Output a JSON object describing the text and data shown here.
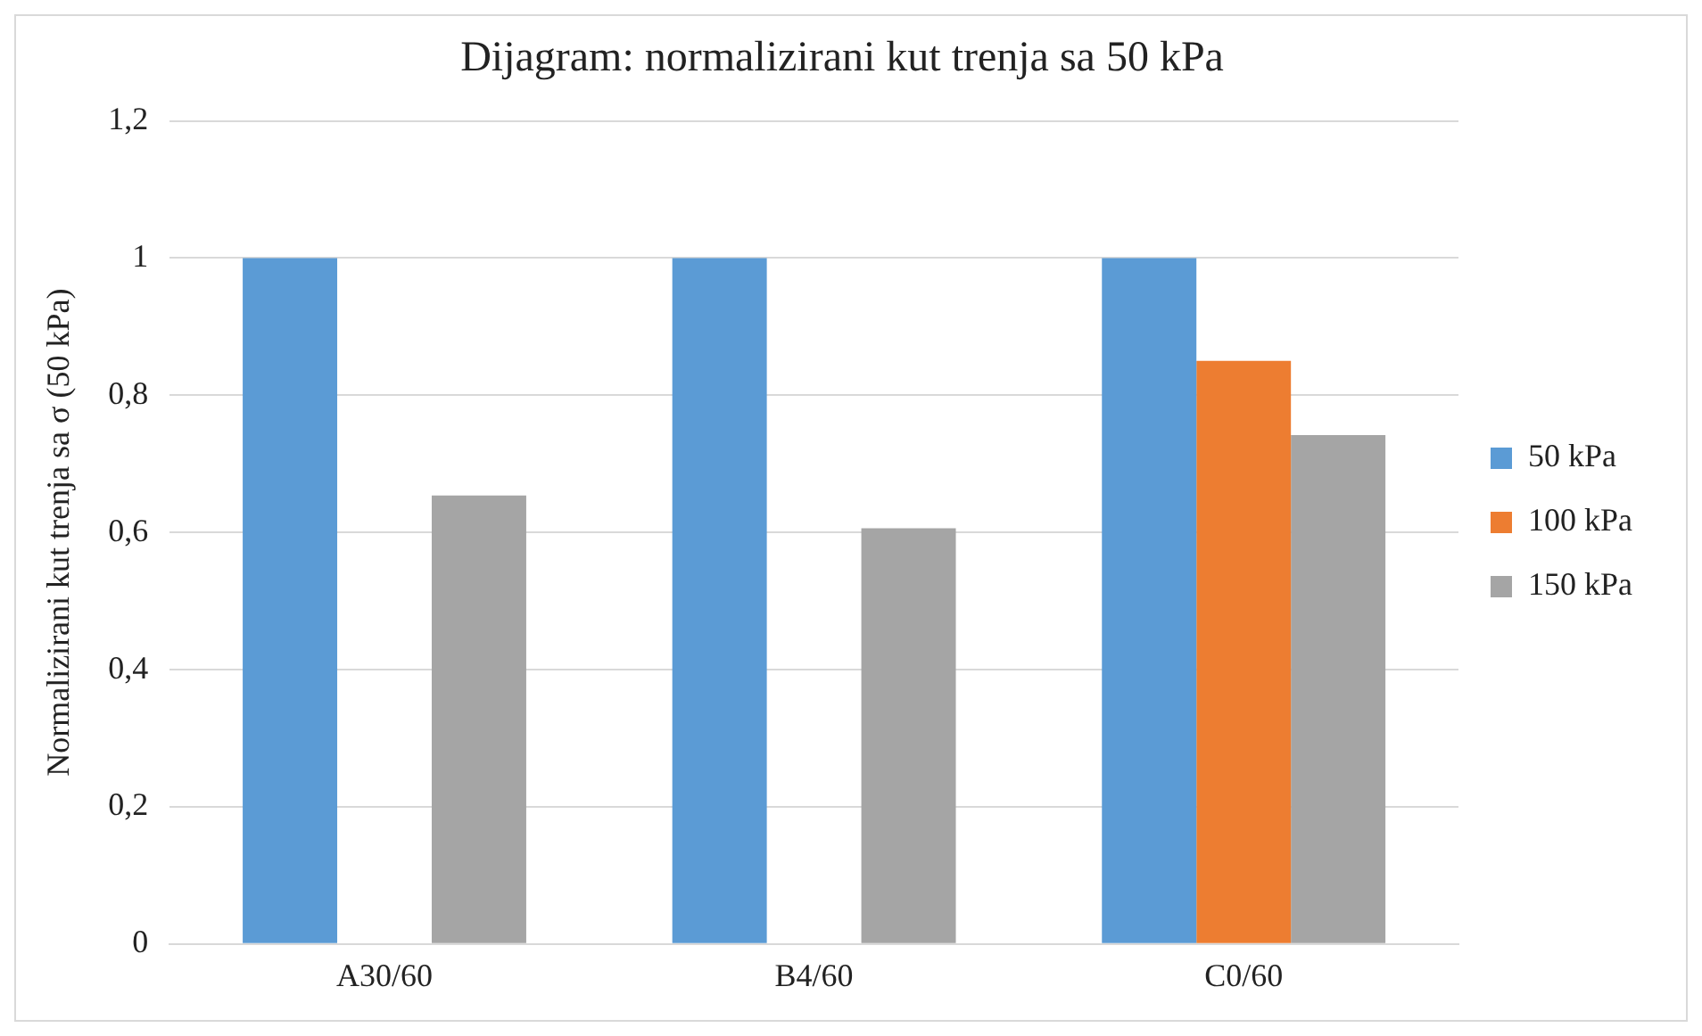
{
  "chart_data": {
    "type": "bar",
    "title": "Dijagram: normalizirani kut trenja sa 50 kPa",
    "ylabel": "Normalizirani kut trenja sa σ (50 kPa)",
    "categories": [
      "A30/60",
      "B4/60",
      "C0/60"
    ],
    "series": [
      {
        "name": "50 kPa",
        "color": "#5b9bd5",
        "values": [
          1,
          1,
          1
        ]
      },
      {
        "name": "100 kPa",
        "color": "#ed7d31",
        "values": [
          null,
          null,
          0.85
        ]
      },
      {
        "name": "150 kPa",
        "color": "#a5a5a5",
        "values": [
          0.654,
          0.606,
          0.742
        ]
      }
    ],
    "ylim": [
      0,
      1.2
    ],
    "yticks": [
      0,
      {
        "value": 0.2,
        "label": "0,2"
      },
      {
        "value": 0.4,
        "label": "0,4"
      },
      {
        "value": 0.6,
        "label": "0,6"
      },
      {
        "value": 0.8,
        "label": "0,8"
      },
      1,
      {
        "value": 1.2,
        "label": "1,2"
      }
    ],
    "grid": "y",
    "legend": "right"
  }
}
